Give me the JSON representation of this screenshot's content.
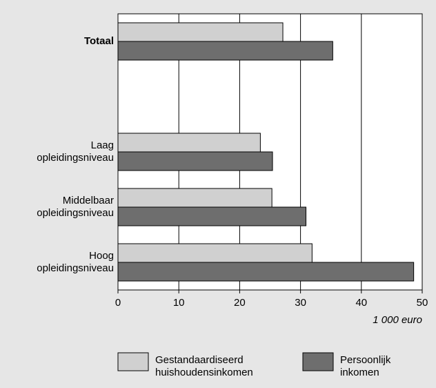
{
  "chart_data": {
    "type": "bar",
    "orientation": "horizontal",
    "categories": [
      "Totaal",
      null,
      "Laag\nopleidingsniveau",
      "Middelbaar\nopleidingsniveau",
      "Hoog\nopleidingsniveau"
    ],
    "series": [
      {
        "name": "Gestandaardiseerd\nhuishoudensinkomen",
        "color": "#d0d0d0",
        "values": [
          27.1,
          null,
          23.4,
          25.3,
          31.9
        ]
      },
      {
        "name": "Persoonlijk\ninkomen",
        "color": "#6e6e6e",
        "values": [
          35.3,
          null,
          25.4,
          30.9,
          48.6
        ]
      }
    ],
    "xlabel": "1 000 euro",
    "xlim": [
      0,
      50
    ],
    "xticks": [
      0,
      10,
      20,
      30,
      40,
      50
    ],
    "grid": true
  }
}
